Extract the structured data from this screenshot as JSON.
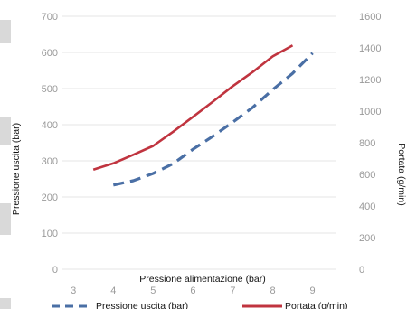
{
  "chart_data": {
    "type": "line",
    "xlabel": "Pressione alimentazione (bar)",
    "ylabel": "Pressione uscita (bar)",
    "y2label": "Portata (g/min)",
    "xlim": [
      2.7,
      9.6
    ],
    "ylim": [
      0,
      700
    ],
    "y2lim": [
      0,
      1600
    ],
    "x_ticks": [
      "3",
      "4",
      "5",
      "6",
      "7",
      "8",
      "9"
    ],
    "y_ticks": [
      "0",
      "100",
      "200",
      "300",
      "400",
      "500",
      "600",
      "700"
    ],
    "y2_ticks": [
      "0",
      "200",
      "400",
      "600",
      "800",
      "1000",
      "1200",
      "1400",
      "1600"
    ],
    "grid": true,
    "legend_position": "bottom",
    "series": [
      {
        "name": "Pressione uscita (bar)",
        "axis": "left",
        "style": "dashed",
        "color": "#4a6fa5",
        "x": [
          4.0,
          4.5,
          5.0,
          5.5,
          6.0,
          6.5,
          7.0,
          7.5,
          8.0,
          8.5,
          9.0
        ],
        "y": [
          233,
          245,
          265,
          292,
          332,
          368,
          407,
          448,
          497,
          542,
          598
        ]
      },
      {
        "name": "Portata (g/min)",
        "axis": "right",
        "style": "solid",
        "color": "#c0343f",
        "x": [
          3.5,
          4.0,
          4.5,
          5.0,
          5.5,
          6.0,
          6.5,
          7.0,
          7.5,
          8.0,
          8.5
        ],
        "y": [
          630,
          670,
          724,
          780,
          870,
          964,
          1060,
          1158,
          1248,
          1346,
          1416
        ]
      }
    ]
  }
}
